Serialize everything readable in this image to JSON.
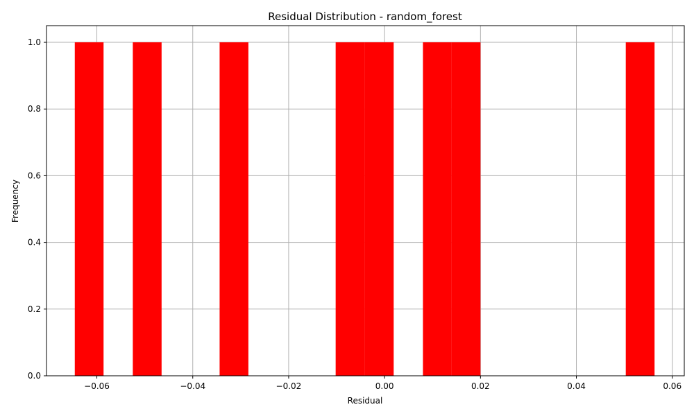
{
  "chart_data": {
    "type": "bar",
    "title": "Residual Distribution - random_forest",
    "xlabel": "Residual",
    "ylabel": "Frequency",
    "xlim": [
      -0.0705,
      0.0625
    ],
    "ylim": [
      0,
      1.05
    ],
    "grid": true,
    "bar_color": "#ff0000",
    "xticks": [
      -0.06,
      -0.04,
      -0.02,
      0.0,
      0.02,
      0.04,
      0.06
    ],
    "xtick_labels": [
      "−0.06",
      "−0.04",
      "−0.02",
      "0.00",
      "0.02",
      "0.04",
      "0.06"
    ],
    "yticks": [
      0.0,
      0.2,
      0.4,
      0.6,
      0.8,
      1.0
    ],
    "ytick_labels": [
      "0.0",
      "0.2",
      "0.4",
      "0.6",
      "0.8",
      "1.0"
    ],
    "bins": [
      {
        "x0": -0.0646,
        "x1": -0.0586,
        "count": 1
      },
      {
        "x0": -0.0525,
        "x1": -0.0465,
        "count": 1
      },
      {
        "x0": -0.0344,
        "x1": -0.0284,
        "count": 1
      },
      {
        "x0": -0.0102,
        "x1": -0.0042,
        "count": 1
      },
      {
        "x0": -0.0042,
        "x1": 0.0019,
        "count": 1
      },
      {
        "x0": 0.008,
        "x1": 0.014,
        "count": 1
      },
      {
        "x0": 0.014,
        "x1": 0.02,
        "count": 1
      },
      {
        "x0": 0.0503,
        "x1": 0.0563,
        "count": 1
      }
    ]
  }
}
